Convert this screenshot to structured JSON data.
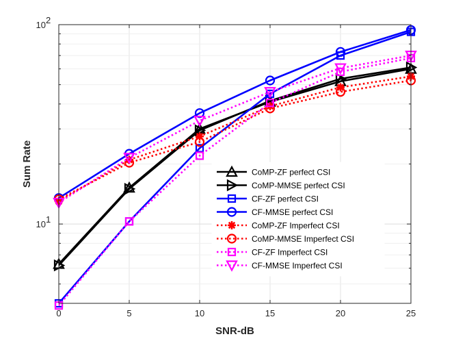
{
  "chart_data": {
    "type": "line",
    "yscale": "log",
    "xlabel": "SNR-dB",
    "ylabel": "Sum Rate",
    "xlim": [
      0,
      25
    ],
    "ylim": [
      4,
      100
    ],
    "grid": true,
    "legend_position": "bottom-right",
    "x": [
      0,
      5,
      10,
      15,
      20,
      25
    ],
    "xticks": [
      {
        "value": 0,
        "label": "0"
      },
      {
        "value": 5,
        "label": "5"
      },
      {
        "value": 10,
        "label": "10"
      },
      {
        "value": 15,
        "label": "15"
      },
      {
        "value": 20,
        "label": "20"
      },
      {
        "value": 25,
        "label": "25"
      }
    ],
    "yticks": [
      {
        "value": 10,
        "base": "10",
        "exp": "1"
      },
      {
        "value": 100,
        "base": "10",
        "exp": "2"
      }
    ],
    "series": [
      {
        "name": "CoMP-ZF perfect CSI",
        "color": "#000000",
        "dash": "solid",
        "marker": "triangle-up",
        "values": [
          6.3,
          15.2,
          30.0,
          41.0,
          52.0,
          60.0
        ]
      },
      {
        "name": "CoMP-MMSE perfect CSI",
        "color": "#000000",
        "dash": "solid",
        "marker": "triangle-right",
        "values": [
          6.2,
          15.0,
          29.5,
          41.5,
          53.5,
          61.0
        ]
      },
      {
        "name": "CF-ZF perfect CSI",
        "color": "#0000ff",
        "dash": "solid",
        "marker": "square",
        "values": [
          4.0,
          10.3,
          24.0,
          45.0,
          70.0,
          92.0
        ]
      },
      {
        "name": "CF-MMSE perfect CSI",
        "color": "#0000ff",
        "dash": "solid",
        "marker": "circle",
        "values": [
          13.5,
          22.5,
          36.0,
          52.5,
          73.0,
          94.0
        ]
      },
      {
        "name": "CoMP-ZF Imperfect CSI",
        "color": "#ff0000",
        "dash": "dotted",
        "marker": "asterisk",
        "values": [
          13.0,
          21.0,
          27.5,
          39.0,
          48.5,
          55.0
        ]
      },
      {
        "name": "CoMP-MMSE Imperfect CSI",
        "color": "#ff0000",
        "dash": "dotted",
        "marker": "circle",
        "values": [
          13.3,
          20.3,
          25.8,
          38.0,
          46.0,
          52.5
        ]
      },
      {
        "name": "CF-ZF Imperfect CSI",
        "color": "#ff00ff",
        "dash": "dotted",
        "marker": "square",
        "values": [
          3.9,
          10.3,
          22.0,
          40.5,
          58.0,
          68.0
        ]
      },
      {
        "name": "CF-MMSE Imperfect CSI",
        "color": "#ff00ff",
        "dash": "dotted",
        "marker": "triangle-down",
        "values": [
          12.8,
          21.5,
          33.0,
          46.0,
          60.5,
          70.0
        ]
      }
    ]
  }
}
